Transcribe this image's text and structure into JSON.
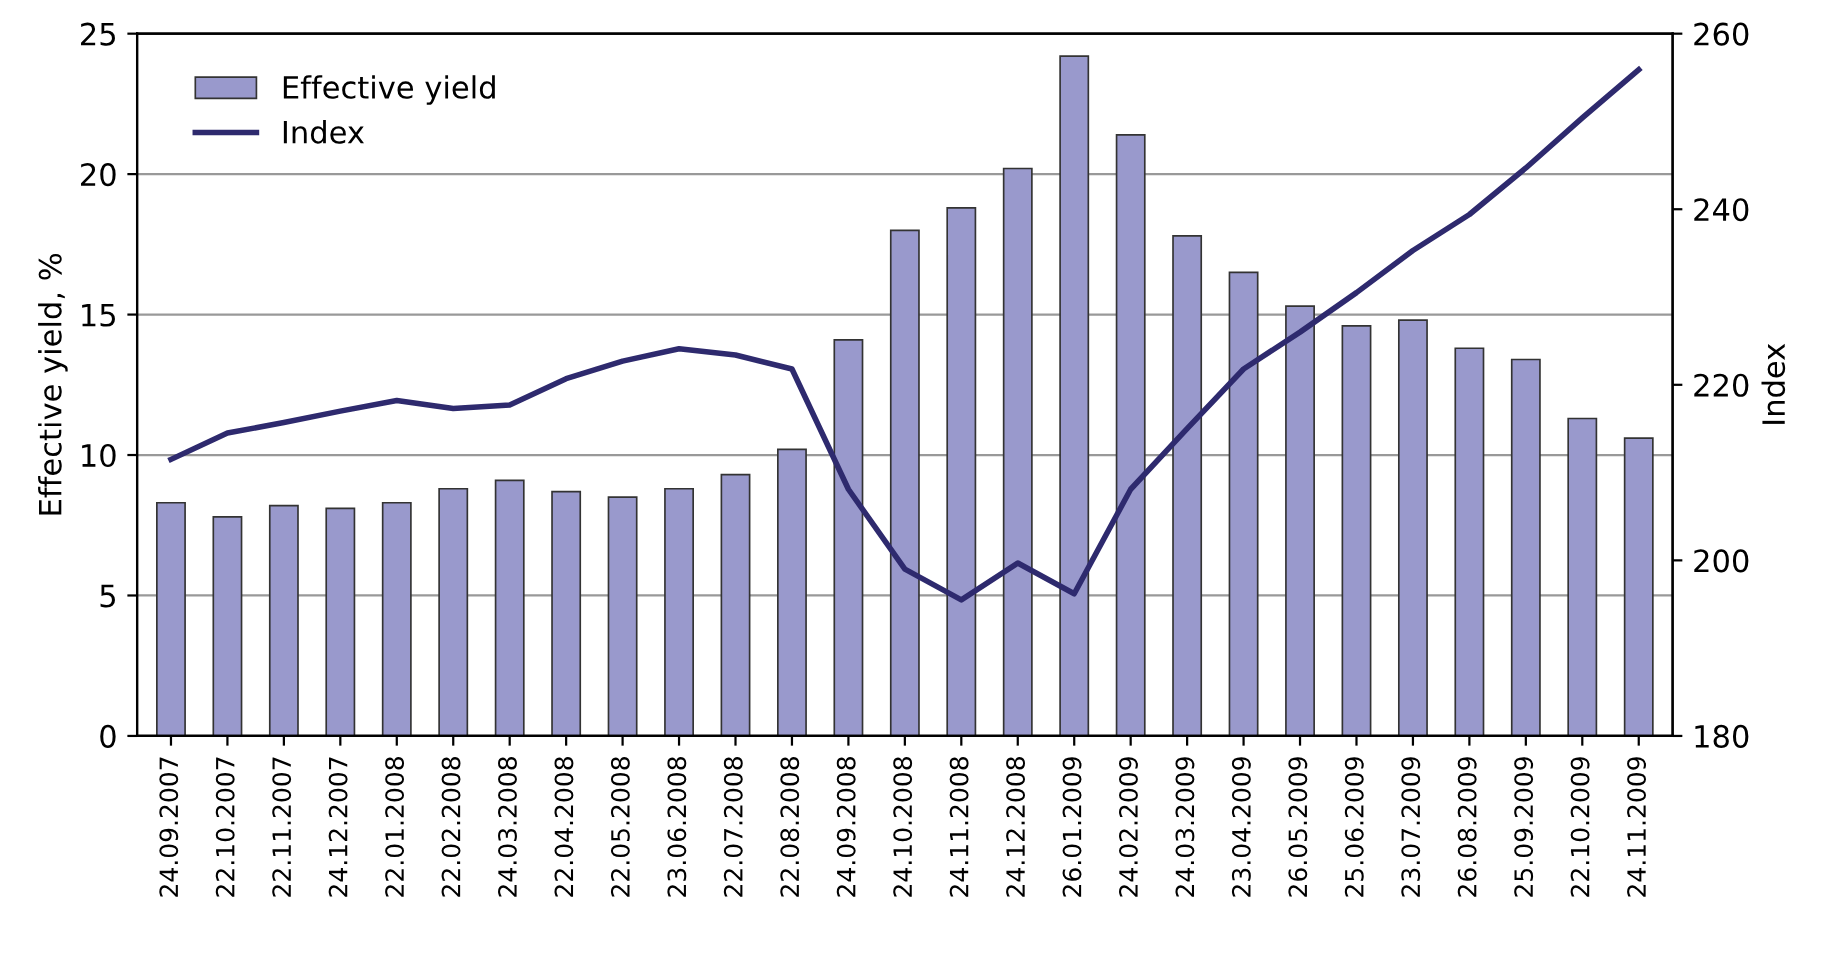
{
  "chart_data": {
    "type": "bar",
    "ylabel": "Effective yield, %",
    "y2label": "Index",
    "categories": [
      "24.09.2007",
      "22.10.2007",
      "22.11.2007",
      "24.12.2007",
      "22.01.2008",
      "22.02.2008",
      "24.03.2008",
      "22.04.2008",
      "22.05.2008",
      "23.06.2008",
      "22.07.2008",
      "22.08.2008",
      "24.09.2008",
      "24.10.2008",
      "24.11.2008",
      "24.12.2008",
      "26.01.2009",
      "24.02.2009",
      "24.03.2009",
      "23.04.2009",
      "26.05.2009",
      "25.06.2009",
      "23.07.2009",
      "26.08.2009",
      "25.09.2009",
      "22.10.2009",
      "24.11.2009"
    ],
    "series": [
      {
        "name": "Effective yield",
        "color": "#9999cc",
        "values": [
          8.3,
          7.8,
          8.2,
          8.1,
          8.3,
          8.8,
          9.1,
          8.7,
          8.5,
          8.8,
          9.3,
          10.2,
          14.1,
          18.0,
          18.8,
          20.2,
          24.2,
          21.4,
          17.8,
          16.5,
          15.3,
          14.6,
          14.8,
          13.8,
          13.4,
          11.3,
          10.6
        ]
      },
      {
        "name": "Index",
        "type": "line",
        "axis": "y2",
        "color": "#2e2a6e",
        "values": [
          211.5,
          214.5,
          215.7,
          217,
          218.2,
          217.3,
          217.7,
          220.7,
          222.7,
          224.1,
          223.4,
          221.8,
          208.1,
          199,
          195.5,
          199.7,
          196.2,
          208.1,
          215,
          221.8,
          226,
          230.5,
          235.3,
          239.4,
          244.7,
          250.4,
          255.9
        ]
      }
    ],
    "ylim": [
      0,
      25
    ],
    "yticks": [
      0,
      5,
      10,
      15,
      20,
      25
    ],
    "y2lim": [
      180,
      260
    ],
    "y2ticks": [
      180,
      200,
      220,
      240,
      260
    ],
    "grid": "y",
    "legend": "top left",
    "marker": "none",
    "line_style": "solid"
  }
}
